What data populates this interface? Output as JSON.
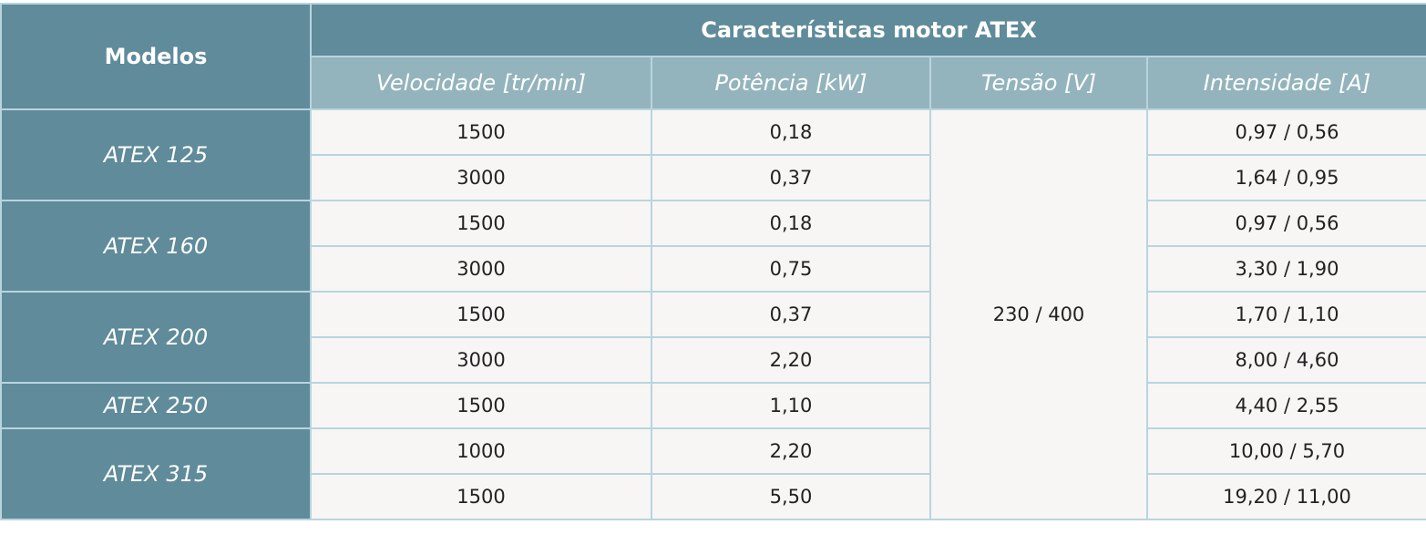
{
  "table": {
    "header": {
      "models": "Modelos",
      "group": "Características motor ATEX",
      "columns": [
        "Velocidade [tr/min]",
        "Potência [kW]",
        "Tensão [V]",
        "Intensidade [A]"
      ]
    },
    "voltage": "230 / 400",
    "groups": [
      {
        "model": "ATEX 125",
        "rows": [
          [
            "1500",
            "0,18",
            "0,97 / 0,56"
          ],
          [
            "3000",
            "0,37",
            "1,64 / 0,95"
          ]
        ]
      },
      {
        "model": "ATEX 160",
        "rows": [
          [
            "1500",
            "0,18",
            "0,97 / 0,56"
          ],
          [
            "3000",
            "0,75",
            "3,30 / 1,90"
          ]
        ]
      },
      {
        "model": "ATEX 200",
        "rows": [
          [
            "1500",
            "0,37",
            "1,70 / 1,10"
          ],
          [
            "3000",
            "2,20",
            "8,00 / 4,60"
          ]
        ]
      },
      {
        "model": "ATEX 250",
        "rows": [
          [
            "1500",
            "1,10",
            "4,40 / 2,55"
          ]
        ]
      },
      {
        "model": "ATEX 315",
        "rows": [
          [
            "1000",
            "2,20",
            "10,00 / 5,70"
          ],
          [
            "1500",
            "5,50",
            "19,20 / 11,00"
          ]
        ]
      }
    ]
  }
}
